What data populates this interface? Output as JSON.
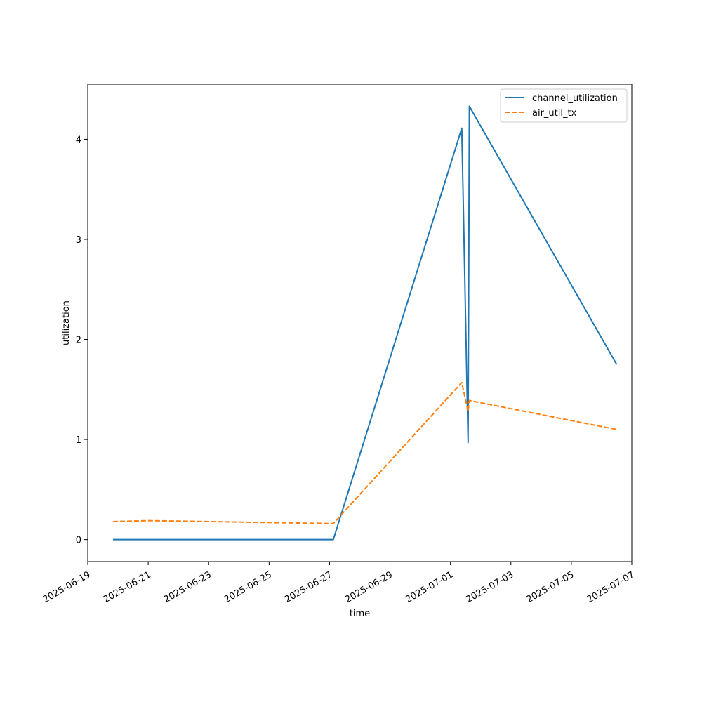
{
  "chart_data": {
    "type": "line",
    "title": "",
    "xlabel": "time",
    "ylabel": "utilization",
    "xlim": [
      "2025-06-19T00:00",
      "2025-07-07T00:00"
    ],
    "ylim": [
      -0.22,
      4.55
    ],
    "grid": false,
    "legend_position": "top-right",
    "x_ticks": [
      "2025-06-19",
      "2025-06-21",
      "2025-06-23",
      "2025-06-25",
      "2025-06-27",
      "2025-06-29",
      "2025-07-01",
      "2025-07-03",
      "2025-07-05",
      "2025-07-07"
    ],
    "y_ticks": [
      0,
      1,
      2,
      3,
      4
    ],
    "series": [
      {
        "name": "channel_utilization",
        "color": "#1f77b4",
        "dash": "solid",
        "points": [
          {
            "x": "2025-06-19T20:00",
            "y": 0
          },
          {
            "x": "2025-06-27T03:00",
            "y": 0
          },
          {
            "x": "2025-07-01T09:00",
            "y": 4.11
          },
          {
            "x": "2025-07-01T14:00",
            "y": 0.97
          },
          {
            "x": "2025-07-01T15:00",
            "y": 4.33
          },
          {
            "x": "2025-07-06T12:00",
            "y": 1.75
          }
        ]
      },
      {
        "name": "air_util_tx",
        "color": "#ff7f0e",
        "dash": "dashed",
        "points": [
          {
            "x": "2025-06-19T20:00",
            "y": 0.18
          },
          {
            "x": "2025-06-21T00:00",
            "y": 0.19
          },
          {
            "x": "2025-06-27T03:00",
            "y": 0.16
          },
          {
            "x": "2025-07-01T09:00",
            "y": 1.57
          },
          {
            "x": "2025-07-01T14:00",
            "y": 1.28
          },
          {
            "x": "2025-07-01T15:00",
            "y": 1.39
          },
          {
            "x": "2025-07-06T12:00",
            "y": 1.1
          }
        ]
      }
    ]
  }
}
